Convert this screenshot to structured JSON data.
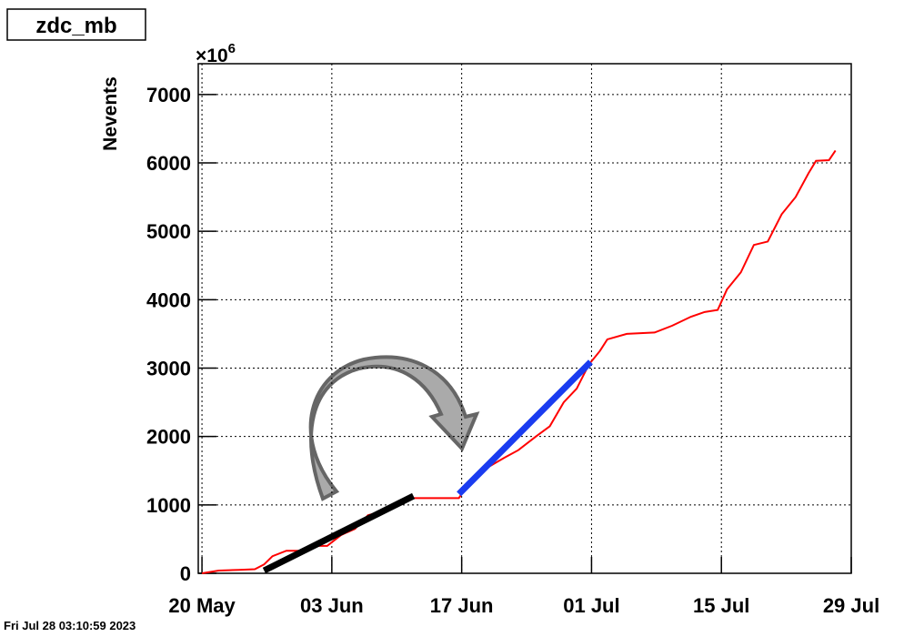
{
  "chart_data": {
    "type": "line",
    "title": "zdc_mb",
    "y_label": "Nevents",
    "y_multiplier": "×10",
    "y_multiplier_exp": "6",
    "footer": "Fri Jul 28 03:10:59 2023",
    "xlim": [
      -0.4,
      70
    ],
    "ylim": [
      0,
      7450
    ],
    "xticks": [
      {
        "value": 0,
        "label": "20 May"
      },
      {
        "value": 14,
        "label": "03 Jun"
      },
      {
        "value": 28,
        "label": "17 Jun"
      },
      {
        "value": 42,
        "label": "01 Jul"
      },
      {
        "value": 56,
        "label": "15 Jul"
      },
      {
        "value": 70,
        "label": "29 Jul"
      }
    ],
    "yticks": [
      0,
      1000,
      2000,
      3000,
      4000,
      5000,
      6000,
      7000
    ],
    "grid": true,
    "series": [
      {
        "color": "#ff0000",
        "width": 2,
        "x": [
          0,
          1.8,
          4,
          5.7,
          6.7,
          7.6,
          9.1,
          10.6,
          12,
          13.5,
          15,
          16.5,
          17.9,
          19.4,
          21.4,
          22.8,
          24.3,
          27.7,
          28.7,
          30.2,
          32.6,
          34.1,
          36,
          37.5,
          39,
          40.4,
          41.7,
          42.9,
          43.7,
          45.8,
          48.8,
          50.7,
          52.7,
          54.2,
          55.6,
          56.6,
          58.1,
          59.5,
          61,
          62.5,
          64,
          65.4,
          66.2,
          67.6,
          68.3
        ],
        "values": [
          0,
          40,
          50,
          60,
          130,
          250,
          330,
          330,
          400,
          400,
          560,
          650,
          850,
          900,
          1030,
          1100,
          1100,
          1100,
          1300,
          1500,
          1690,
          1800,
          2000,
          2150,
          2500,
          2700,
          3050,
          3250,
          3420,
          3500,
          3520,
          3620,
          3750,
          3820,
          3850,
          4150,
          4400,
          4800,
          4850,
          5250,
          5500,
          5850,
          6030,
          6040,
          6180
        ]
      },
      {
        "color": "#000000",
        "width": 7,
        "x": [
          6.7,
          22.8
        ],
        "values": [
          40,
          1130
        ]
      },
      {
        "color": "#1a3cf0",
        "width": 7,
        "x": [
          27.7,
          41.9
        ],
        "values": [
          1160,
          3090
        ]
      }
    ]
  }
}
